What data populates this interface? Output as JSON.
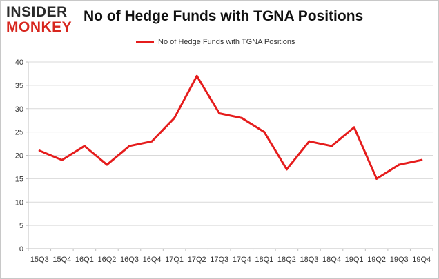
{
  "logo": {
    "line1": "INSIDER",
    "line2": "MONKEY"
  },
  "chart_data": {
    "type": "line",
    "title": "No of Hedge Funds with TGNA Positions",
    "xlabel": "",
    "ylabel": "",
    "categories": [
      "15Q3",
      "15Q4",
      "16Q1",
      "16Q2",
      "16Q3",
      "16Q4",
      "17Q1",
      "17Q2",
      "17Q3",
      "17Q4",
      "18Q1",
      "18Q2",
      "18Q3",
      "18Q4",
      "19Q1",
      "19Q2",
      "19Q3",
      "19Q4"
    ],
    "series": [
      {
        "name": "No of Hedge Funds with TGNA Positions",
        "values": [
          21,
          19,
          22,
          18,
          22,
          23,
          28,
          37,
          29,
          28,
          25,
          17,
          23,
          22,
          26,
          15,
          18,
          19
        ],
        "color": "#e51c1c"
      }
    ],
    "ylim": [
      0,
      40
    ],
    "yticks": [
      0,
      5,
      10,
      15,
      20,
      25,
      30,
      35,
      40
    ],
    "grid": true,
    "legend": "top-center",
    "colors": {
      "grid": "#d9d9d9",
      "axis": "#bfbfbf",
      "line": "#e51c1c",
      "title": "#111111",
      "logo_red": "#d7261e"
    }
  }
}
